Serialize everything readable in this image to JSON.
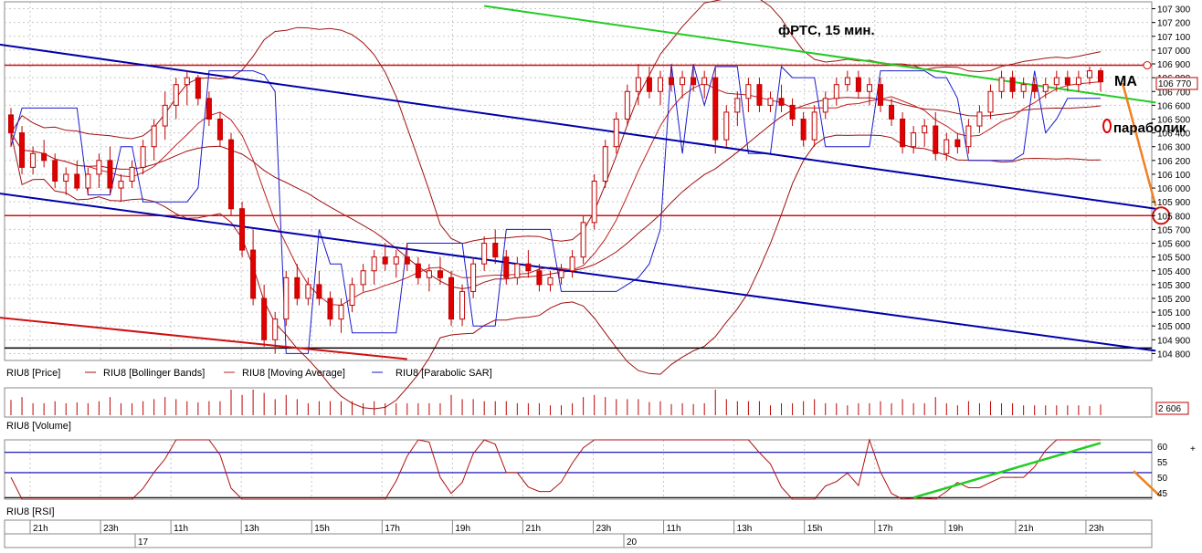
{
  "chart_data": [
    {
      "type": "candlestick",
      "instrument": "RIU8",
      "title": "фРТС, 15 мин.",
      "ylim": [
        104750,
        107350
      ],
      "y_ticks": [
        104800,
        104900,
        105000,
        105100,
        105200,
        105300,
        105400,
        105500,
        105600,
        105700,
        105800,
        105900,
        106000,
        106100,
        106200,
        106300,
        106400,
        106500,
        106600,
        106700,
        106800,
        106900,
        107000,
        107100,
        107200,
        107300
      ],
      "last_price": 106770,
      "last_price_label": "106 770",
      "legend": [
        "RIU8 [Price]",
        "RIU8 [Bollinger Bands]",
        "RIU8 [Moving Average]",
        "RIU8 [Parabolic SAR]"
      ],
      "annotations": {
        "ma": "MA",
        "parabolic": "параболик"
      },
      "horizontal_levels": [
        106890,
        105800,
        104840
      ],
      "candles": [
        [
          106530,
          106580,
          106300,
          106400
        ],
        [
          106400,
          106450,
          106100,
          106150
        ],
        [
          106150,
          106300,
          106100,
          106250
        ],
        [
          106250,
          106350,
          106150,
          106200
        ],
        [
          106200,
          106250,
          106000,
          106050
        ],
        [
          106050,
          106150,
          105950,
          106100
        ],
        [
          106100,
          106200,
          105980,
          106000
        ],
        [
          106000,
          106150,
          105950,
          106100
        ],
        [
          106100,
          106250,
          106000,
          106200
        ],
        [
          106200,
          106300,
          105950,
          106000
        ],
        [
          106000,
          106100,
          105900,
          106050
        ],
        [
          106050,
          106200,
          106000,
          106150
        ],
        [
          106150,
          106350,
          106100,
          106300
        ],
        [
          106300,
          106500,
          106200,
          106450
        ],
        [
          106450,
          106700,
          106350,
          106600
        ],
        [
          106600,
          106800,
          106500,
          106750
        ],
        [
          106750,
          106850,
          106600,
          106800
        ],
        [
          106800,
          106820,
          106600,
          106650
        ],
        [
          106650,
          106700,
          106450,
          106500
        ],
        [
          106500,
          106550,
          106300,
          106350
        ],
        [
          106350,
          106400,
          105800,
          105850
        ],
        [
          105850,
          105900,
          105500,
          105550
        ],
        [
          105550,
          105700,
          105150,
          105200
        ],
        [
          105200,
          105300,
          104850,
          104900
        ],
        [
          104900,
          105100,
          104800,
          105050
        ],
        [
          105050,
          105400,
          105000,
          105350
        ],
        [
          105350,
          105450,
          105150,
          105200
        ],
        [
          105200,
          105350,
          105150,
          105300
        ],
        [
          105300,
          105400,
          105150,
          105200
        ],
        [
          105200,
          105250,
          105000,
          105050
        ],
        [
          105050,
          105200,
          104950,
          105150
        ],
        [
          105150,
          105350,
          105100,
          105300
        ],
        [
          105300,
          105450,
          105250,
          105400
        ],
        [
          105400,
          105550,
          105300,
          105500
        ],
        [
          105500,
          105600,
          105400,
          105450
        ],
        [
          105450,
          105550,
          105350,
          105500
        ],
        [
          105500,
          105600,
          105400,
          105450
        ],
        [
          105450,
          105500,
          105300,
          105350
        ],
        [
          105350,
          105450,
          105250,
          105400
        ],
        [
          105400,
          105500,
          105300,
          105350
        ],
        [
          105350,
          105400,
          105000,
          105050
        ],
        [
          105050,
          105300,
          105000,
          105250
        ],
        [
          105250,
          105500,
          105200,
          105450
        ],
        [
          105450,
          105650,
          105400,
          105600
        ],
        [
          105600,
          105700,
          105450,
          105500
        ],
        [
          105500,
          105550,
          105300,
          105350
        ],
        [
          105350,
          105500,
          105300,
          105450
        ],
        [
          105450,
          105550,
          105350,
          105400
        ],
        [
          105400,
          105450,
          105250,
          105300
        ],
        [
          105300,
          105400,
          105250,
          105350
        ],
        [
          105350,
          105450,
          105300,
          105400
        ],
        [
          105400,
          105550,
          105350,
          105500
        ],
        [
          105500,
          105800,
          105450,
          105750
        ],
        [
          105750,
          106100,
          105700,
          106050
        ],
        [
          106050,
          106350,
          106000,
          106300
        ],
        [
          106300,
          106550,
          106250,
          106500
        ],
        [
          106500,
          106750,
          106450,
          106700
        ],
        [
          106700,
          106900,
          106600,
          106800
        ],
        [
          106800,
          106880,
          106650,
          106700
        ],
        [
          106700,
          106850,
          106600,
          106800
        ],
        [
          106800,
          106880,
          106700,
          106750
        ],
        [
          106750,
          106850,
          106650,
          106800
        ],
        [
          106800,
          106880,
          106700,
          106750
        ],
        [
          106750,
          106850,
          106650,
          106800
        ],
        [
          106800,
          106880,
          106250,
          106350
        ],
        [
          106350,
          106600,
          106300,
          106550
        ],
        [
          106550,
          106700,
          106450,
          106650
        ],
        [
          106650,
          106800,
          106550,
          106750
        ],
        [
          106750,
          106800,
          106550,
          106600
        ],
        [
          106600,
          106700,
          106550,
          106650
        ],
        [
          106650,
          106750,
          106550,
          106600
        ],
        [
          106600,
          106650,
          106450,
          106500
        ],
        [
          106500,
          106550,
          106300,
          106350
        ],
        [
          106350,
          106600,
          106300,
          106550
        ],
        [
          106550,
          106700,
          106500,
          106650
        ],
        [
          106650,
          106800,
          106600,
          106750
        ],
        [
          106750,
          106850,
          106700,
          106800
        ],
        [
          106800,
          106850,
          106650,
          106700
        ],
        [
          106700,
          106800,
          106600,
          106750
        ],
        [
          106750,
          106800,
          106550,
          106600
        ],
        [
          106600,
          106650,
          106450,
          106500
        ],
        [
          106500,
          106550,
          106250,
          106300
        ],
        [
          106300,
          106450,
          106250,
          106400
        ],
        [
          106400,
          106500,
          106300,
          106450
        ],
        [
          106450,
          106550,
          106200,
          106250
        ],
        [
          106250,
          106400,
          106200,
          106350
        ],
        [
          106350,
          106400,
          106250,
          106300
        ],
        [
          106300,
          106500,
          106250,
          106450
        ],
        [
          106450,
          106600,
          106400,
          106550
        ],
        [
          106550,
          106750,
          106500,
          106700
        ],
        [
          106700,
          106850,
          106650,
          106800
        ],
        [
          106800,
          106850,
          106650,
          106700
        ],
        [
          106700,
          106800,
          106650,
          106750
        ],
        [
          106750,
          106800,
          106650,
          106700
        ],
        [
          106700,
          106800,
          106650,
          106750
        ],
        [
          106750,
          106850,
          106700,
          106800
        ],
        [
          106800,
          106850,
          106700,
          106750
        ],
        [
          106750,
          106850,
          106700,
          106800
        ],
        [
          106800,
          106880,
          106750,
          106850
        ],
        [
          106850,
          106870,
          106700,
          106770
        ]
      ]
    },
    {
      "type": "bar",
      "instrument": "RIU8",
      "legend": [
        "RIU8 [Volume]"
      ],
      "last_value_label": "2 606"
    },
    {
      "type": "line",
      "instrument": "RIU8",
      "legend": [
        "RIU8 [RSI]"
      ],
      "ylim": [
        43,
        62
      ],
      "y_ticks": [
        45,
        50,
        55,
        60
      ],
      "levels": [
        58,
        51.5,
        43.5
      ]
    }
  ],
  "time_axis": {
    "hour_labels": [
      "21h",
      "23h",
      "11h",
      "13h",
      "15h",
      "17h",
      "19h",
      "21h",
      "23h",
      "11h",
      "13h",
      "15h",
      "17h",
      "19h",
      "21h",
      "23h"
    ],
    "day_labels": [
      "17",
      "20"
    ]
  },
  "colors": {
    "candle_up": "#ffffff",
    "candle_down": "#e00000",
    "candle_outline": "#c00000",
    "bollinger": "#a01010",
    "moving_average": "#c02020",
    "parabolic_sar": "#1a1ad0",
    "channel": "#0000aa",
    "trend_green": "#22cc22",
    "level_red": "#d01010",
    "arrow_orange": "#f08020",
    "grid": "#c8c8c8"
  }
}
